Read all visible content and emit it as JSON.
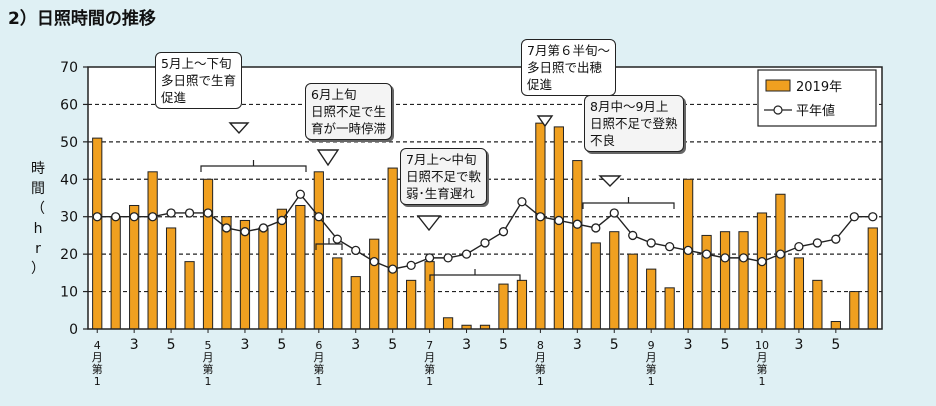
{
  "title": "2）日照時間の推移",
  "chart_data": {
    "type": "bar",
    "ylabel": "時間（hr）",
    "ylim": [
      0,
      70
    ],
    "yticks": [
      0,
      10,
      20,
      30,
      40,
      50,
      60,
      70
    ],
    "legend": {
      "bar": "2019年",
      "line": "平年値",
      "position": "top-right"
    },
    "xticks": [
      {
        "i": 0,
        "label": "4\n月\n第\n1"
      },
      {
        "i": 2,
        "label": "3"
      },
      {
        "i": 4,
        "label": "5"
      },
      {
        "i": 6,
        "label": "5\n月\n第\n1"
      },
      {
        "i": 8,
        "label": "3"
      },
      {
        "i": 10,
        "label": "5"
      },
      {
        "i": 12,
        "label": "6\n月\n第\n1"
      },
      {
        "i": 14,
        "label": "3"
      },
      {
        "i": 16,
        "label": "5"
      },
      {
        "i": 18,
        "label": "7\n月\n第\n1"
      },
      {
        "i": 20,
        "label": "3"
      },
      {
        "i": 22,
        "label": "5"
      },
      {
        "i": 24,
        "label": "8\n月\n第\n1"
      },
      {
        "i": 26,
        "label": "3"
      },
      {
        "i": 28,
        "label": "5"
      },
      {
        "i": 30,
        "label": "9\n月\n第\n1"
      },
      {
        "i": 32,
        "label": "3"
      },
      {
        "i": 34,
        "label": "5"
      },
      {
        "i": 36,
        "label": "10\n月\n第\n1"
      },
      {
        "i": 38,
        "label": "3"
      },
      {
        "i": 40,
        "label": "5"
      }
    ],
    "series": [
      {
        "name": "2019年",
        "type": "bar",
        "values": [
          51,
          30,
          33,
          42,
          27,
          18,
          40,
          30,
          29,
          27,
          32,
          33,
          42,
          19,
          14,
          24,
          43,
          13,
          18,
          3,
          1,
          1,
          12,
          13,
          55,
          54,
          45,
          23,
          26,
          20,
          16,
          11,
          40,
          25,
          26,
          26,
          31,
          36,
          19,
          13,
          2,
          10,
          27
        ]
      },
      {
        "name": "平年値",
        "type": "line",
        "values": [
          30,
          30,
          30,
          30,
          31,
          31,
          31,
          27,
          26,
          27,
          29,
          36,
          30,
          24,
          21,
          18,
          16,
          17,
          19,
          19,
          20,
          23,
          26,
          34,
          30,
          29,
          28,
          27,
          31,
          25,
          23,
          22,
          21,
          20,
          19,
          19,
          18,
          20,
          22,
          23,
          24,
          30,
          30
        ]
      }
    ],
    "annotations": [
      "5月上～下旬\n多日照で生育\n促進",
      "6月上旬\n日照不足で生\n育が一時停滞",
      "7月上～中旬\n日照不足で軟\n弱･生育遅れ",
      "7月第６半旬～\n多日照で出穂\n促進",
      "8月中～9月上\n日照不足で登熟\n不良"
    ]
  }
}
